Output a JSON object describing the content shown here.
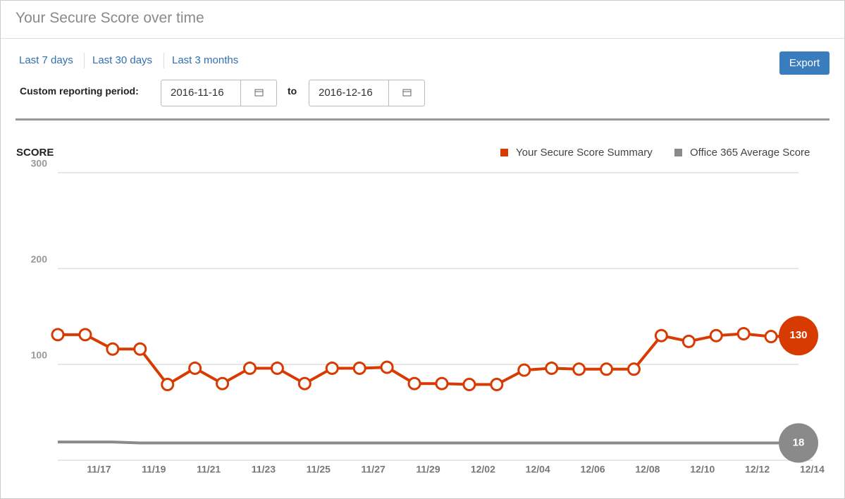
{
  "header": {
    "title": "Your Secure Score over time"
  },
  "controls": {
    "links": [
      "Last 7 days",
      "Last 30 days",
      "Last 3 months"
    ],
    "export": "Export",
    "period_label": "Custom reporting period:",
    "from": "2016-11-16",
    "to_label": "to",
    "to": "2016-12-16"
  },
  "chart_data": {
    "type": "line",
    "y_label": "SCORE",
    "categories": [
      null,
      "11/17",
      null,
      "11/19",
      null,
      "11/21",
      null,
      "11/23",
      null,
      "11/25",
      null,
      "11/27",
      null,
      "11/29",
      null,
      "12/02",
      null,
      "12/04",
      null,
      "12/06",
      null,
      "12/08",
      null,
      "12/10",
      null,
      "12/12",
      null,
      "12/14"
    ],
    "series": [
      {
        "name": "Your Secure Score Summary",
        "color": "#d83b01",
        "markers": true,
        "values": [
          131,
          131,
          116,
          116,
          79,
          96,
          80,
          96,
          96,
          80,
          96,
          96,
          97,
          80,
          80,
          79,
          79,
          94,
          96,
          95,
          95,
          95,
          130,
          124,
          130,
          132,
          129,
          130
        ],
        "value_labels": [
          null,
          null,
          null,
          null,
          null,
          null,
          null,
          null,
          null,
          null,
          null,
          null,
          null,
          null,
          null,
          null,
          null,
          null,
          null,
          null,
          null,
          null,
          null,
          null,
          null,
          null,
          null,
          "130"
        ]
      },
      {
        "name": "Office 365 Average Score",
        "color": "#8a8a8a",
        "markers": false,
        "values": [
          19,
          19,
          19,
          18,
          18,
          18,
          18,
          18,
          18,
          18,
          18,
          18,
          18,
          18,
          18,
          18,
          18,
          18,
          18,
          18,
          18,
          18,
          18,
          18,
          18,
          18,
          18,
          18
        ],
        "value_labels": [
          null,
          null,
          null,
          null,
          null,
          null,
          null,
          null,
          null,
          null,
          null,
          null,
          null,
          null,
          null,
          null,
          null,
          null,
          null,
          null,
          null,
          null,
          null,
          null,
          null,
          null,
          null,
          "18"
        ]
      }
    ],
    "ylim": [
      0,
      300
    ],
    "yticks": [
      100,
      200,
      300
    ],
    "grid": true
  }
}
